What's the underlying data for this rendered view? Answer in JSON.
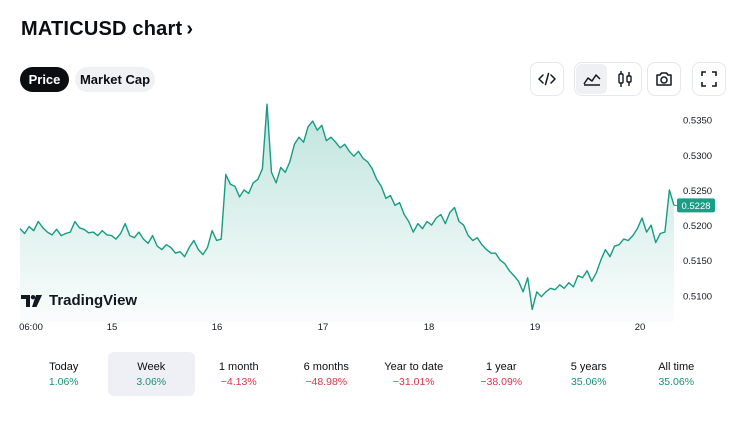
{
  "title": "MATICUSD chart",
  "title_chevron": "›",
  "tabs": {
    "price": "Price",
    "market_cap": "Market Cap"
  },
  "toolbar": [
    {
      "name": "embed-code-icon"
    },
    {
      "name": "area-chart-icon",
      "active": true
    },
    {
      "name": "candlestick-icon"
    },
    {
      "name": "camera-icon"
    },
    {
      "name": "fullscreen-icon"
    }
  ],
  "branding": "TradingView",
  "colors": {
    "line": "#179b83",
    "badge": "#1a9e86",
    "positive": "#16907a",
    "negative": "#d6364a"
  },
  "chart_data": {
    "type": "area",
    "symbol": "MATICUSD",
    "x_ticks": [
      "06:00",
      "15",
      "16",
      "17",
      "18",
      "19",
      "20"
    ],
    "y_ticks": [
      "0.5100",
      "0.5150",
      "0.5200",
      "0.5250",
      "0.5300",
      "0.5350"
    ],
    "ylim": [
      0.5062,
      0.5378
    ],
    "last_price": "0.5228",
    "series": [
      {
        "values": [
          0.5195,
          0.5188,
          0.5198,
          0.5192,
          0.5205,
          0.5196,
          0.519,
          0.5186,
          0.5194,
          0.5185,
          0.5188,
          0.519,
          0.5205,
          0.5196,
          0.5194,
          0.5189,
          0.519,
          0.5185,
          0.5192,
          0.5186,
          0.5185,
          0.518,
          0.5188,
          0.5202,
          0.5185,
          0.5182,
          0.519,
          0.518,
          0.5174,
          0.5185,
          0.517,
          0.5165,
          0.5172,
          0.5168,
          0.516,
          0.5162,
          0.5155,
          0.5168,
          0.5178,
          0.5165,
          0.5158,
          0.5168,
          0.5192,
          0.5178,
          0.518,
          0.5272,
          0.5258,
          0.5255,
          0.524,
          0.525,
          0.5245,
          0.526,
          0.5265,
          0.528,
          0.5372,
          0.5275,
          0.526,
          0.5282,
          0.5275,
          0.529,
          0.5315,
          0.5325,
          0.5318,
          0.534,
          0.5348,
          0.5335,
          0.5342,
          0.532,
          0.5325,
          0.5318,
          0.531,
          0.5315,
          0.5305,
          0.5298,
          0.5305,
          0.5295,
          0.529,
          0.528,
          0.5265,
          0.5255,
          0.5238,
          0.5242,
          0.5228,
          0.5232,
          0.5215,
          0.5205,
          0.519,
          0.5202,
          0.5195,
          0.5205,
          0.52,
          0.521,
          0.5215,
          0.5202,
          0.5218,
          0.5225,
          0.5205,
          0.52,
          0.5185,
          0.5178,
          0.5182,
          0.5172,
          0.5165,
          0.516,
          0.516,
          0.515,
          0.5145,
          0.5135,
          0.5128,
          0.512,
          0.5105,
          0.5125,
          0.508,
          0.5105,
          0.5098,
          0.5105,
          0.511,
          0.5108,
          0.5115,
          0.511,
          0.5118,
          0.5112,
          0.5128,
          0.5125,
          0.5135,
          0.512,
          0.5132,
          0.515,
          0.5165,
          0.5155,
          0.517,
          0.5172,
          0.518,
          0.5178,
          0.5185,
          0.5195,
          0.521,
          0.519,
          0.52,
          0.5175,
          0.5188,
          0.519,
          0.525,
          0.5228
        ]
      }
    ]
  },
  "performance": [
    {
      "label": "Today",
      "value": "1.06%",
      "dir": "pos"
    },
    {
      "label": "Week",
      "value": "3.06%",
      "dir": "pos",
      "active": true
    },
    {
      "label": "1 month",
      "value": "−4.13%",
      "dir": "neg"
    },
    {
      "label": "6 months",
      "value": "−48.98%",
      "dir": "neg"
    },
    {
      "label": "Year to date",
      "value": "−31.01%",
      "dir": "neg"
    },
    {
      "label": "1 year",
      "value": "−38.09%",
      "dir": "neg"
    },
    {
      "label": "5 years",
      "value": "35.06%",
      "dir": "pos"
    },
    {
      "label": "All time",
      "value": "35.06%",
      "dir": "pos"
    }
  ]
}
